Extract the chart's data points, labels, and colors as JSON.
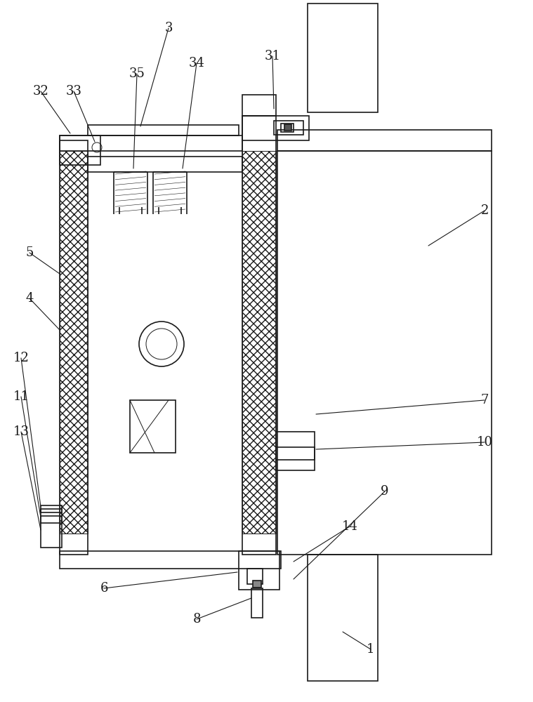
{
  "bg": "#ffffff",
  "lc": "#1a1a1a",
  "lw": 1.2,
  "tlw": 0.7,
  "fs": 13
}
